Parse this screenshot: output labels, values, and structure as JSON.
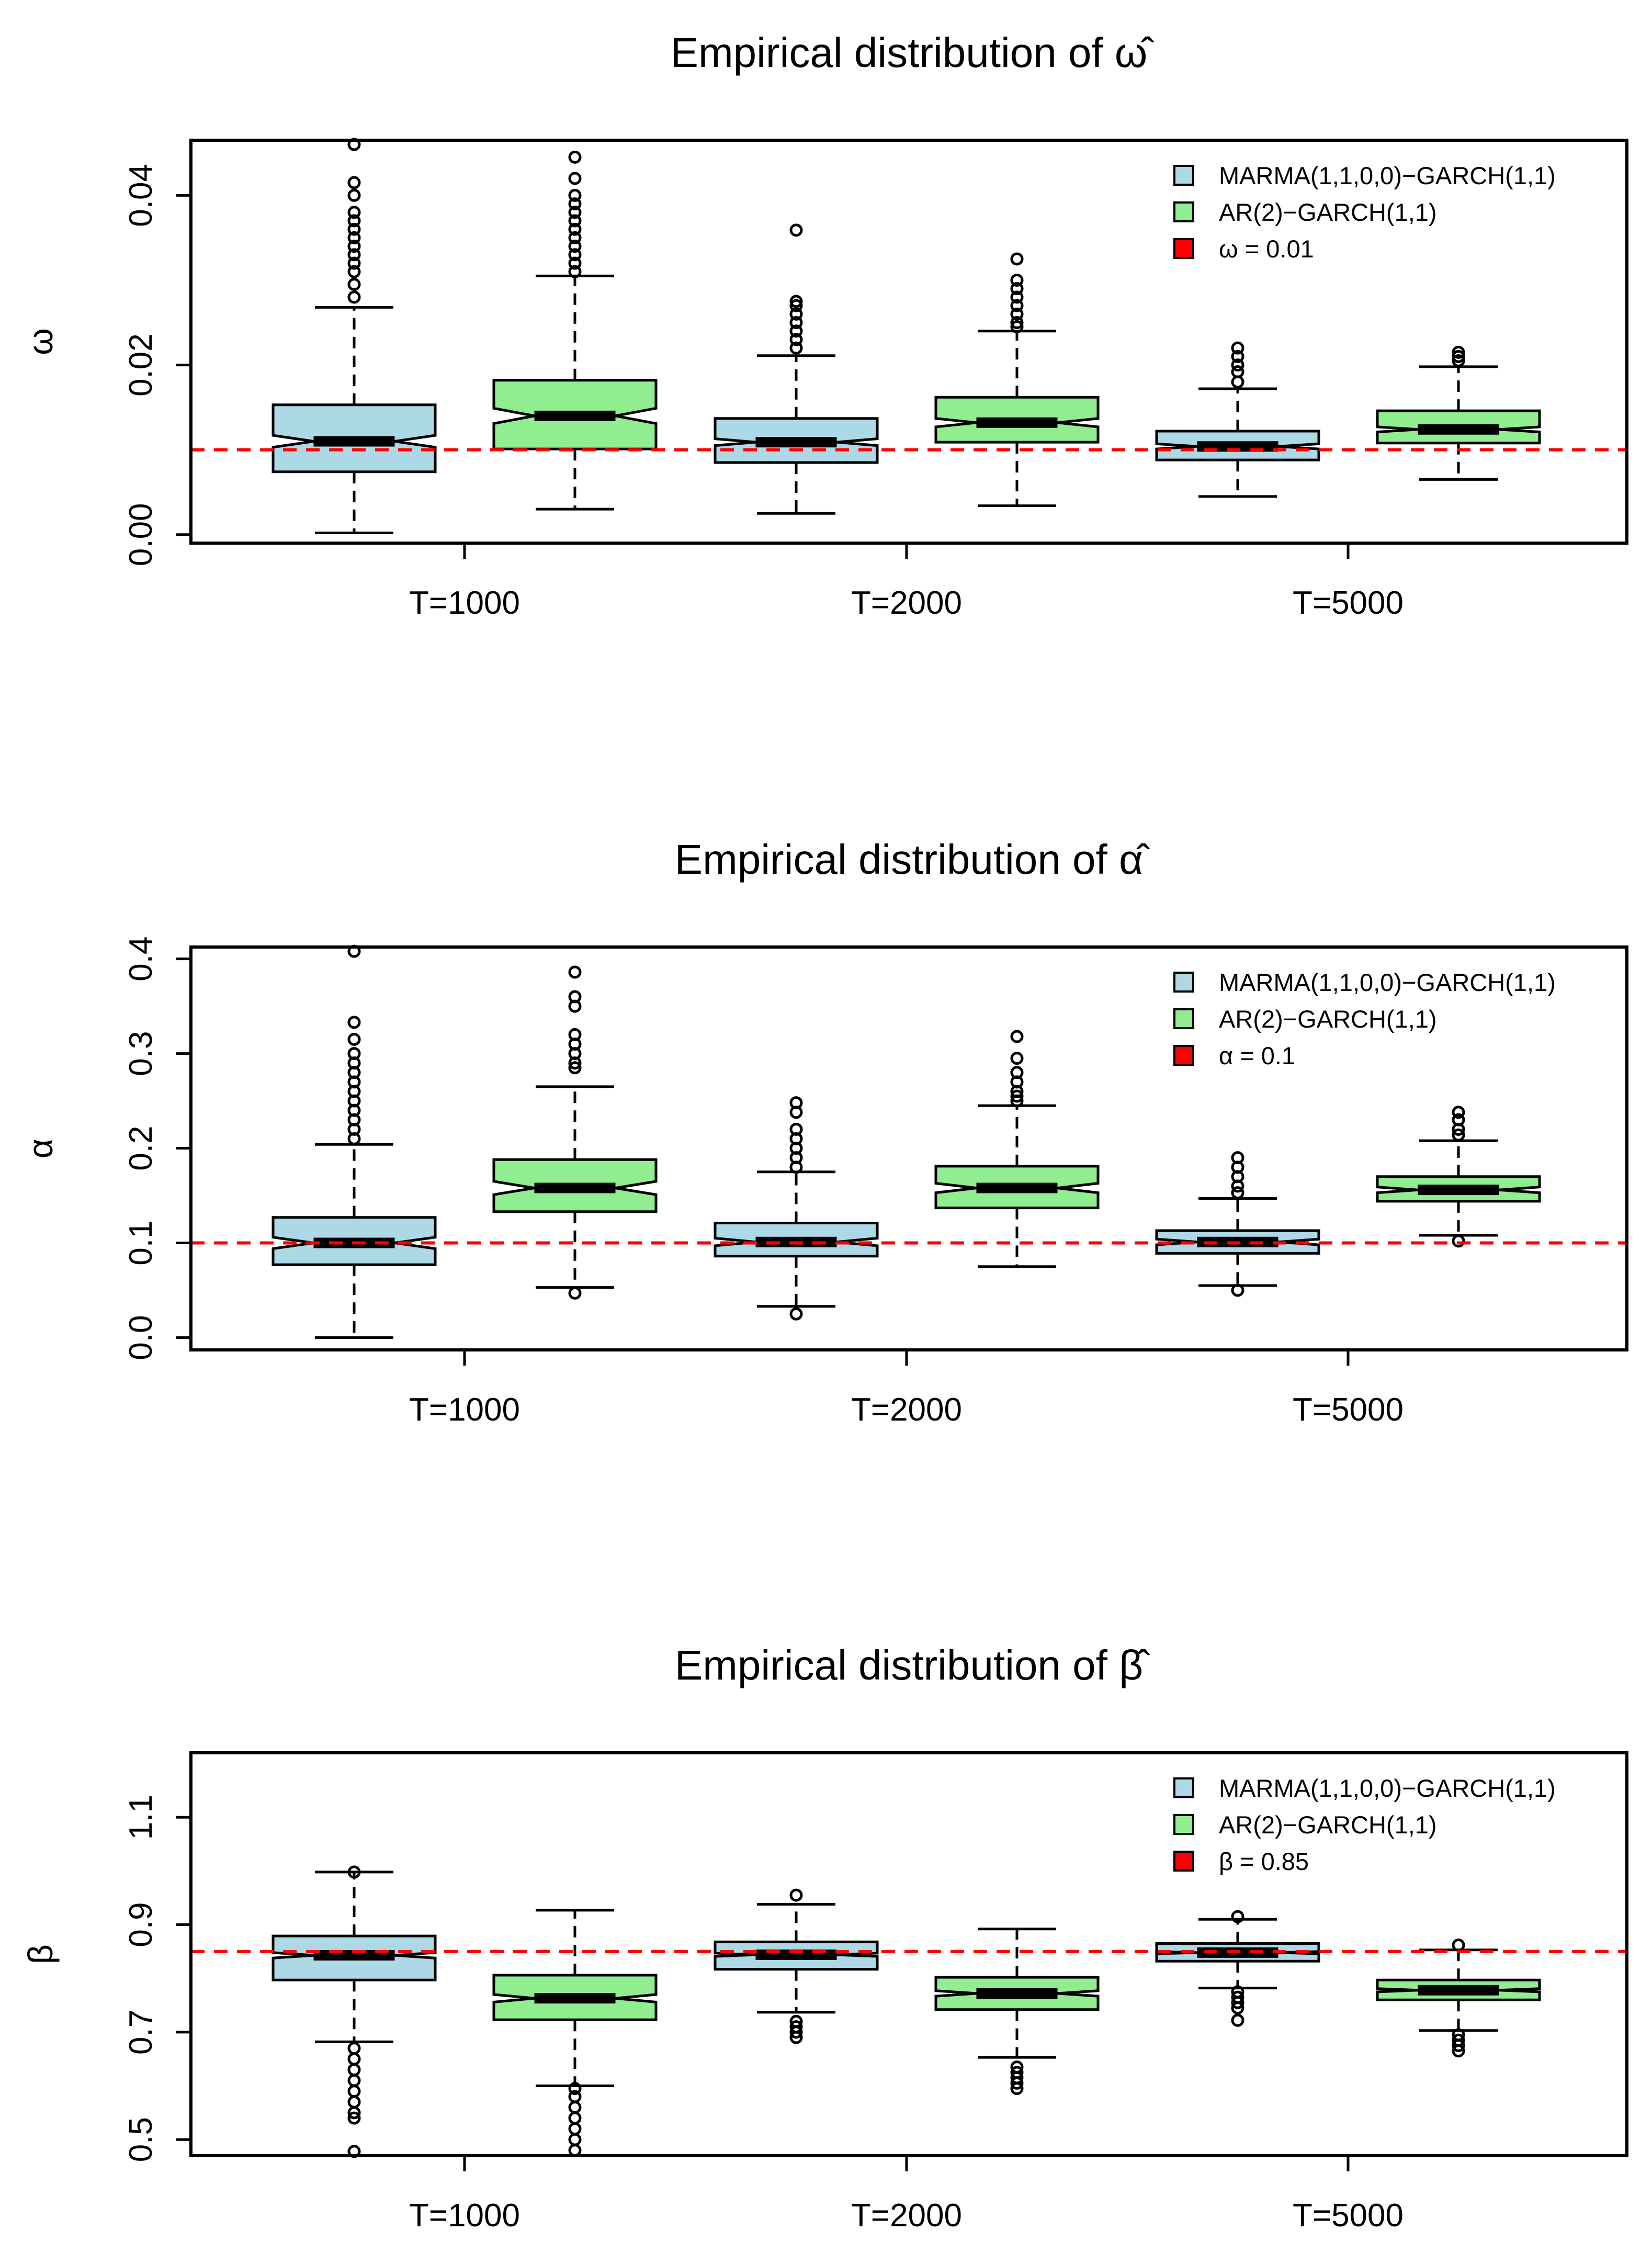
{
  "chart_data": [
    {
      "type": "box",
      "title": "Empirical distribution of ω̂",
      "ylabel": "ω",
      "ylim": [
        -0.001,
        0.0465
      ],
      "yticks": [
        0.0,
        0.02,
        0.04
      ],
      "ytick_labels": [
        "0.00",
        "0.02",
        "0.04"
      ],
      "categories": [
        "T=1000",
        "T=2000",
        "T=5000"
      ],
      "series": [
        {
          "name": "MARMA(1,1,0,0)−GARCH(1,1)",
          "color": "#add8e6",
          "boxes": [
            {
              "min": 0.0002,
              "q1": 0.0074,
              "median": 0.011,
              "q3": 0.0153,
              "max": 0.0268,
              "notch": 0.0007,
              "outliers": [
                0.028,
                0.0295,
                0.031,
                0.032,
                0.033,
                0.034,
                0.035,
                0.036,
                0.037,
                0.038,
                0.04,
                0.0415,
                0.046
              ]
            },
            {
              "min": 0.0025,
              "q1": 0.0085,
              "median": 0.0109,
              "q3": 0.0137,
              "max": 0.0211,
              "notch": 0.0004,
              "outliers": [
                0.022,
                0.023,
                0.024,
                0.025,
                0.026,
                0.027,
                0.0275,
                0.0359
              ]
            },
            {
              "min": 0.0045,
              "q1": 0.0088,
              "median": 0.0104,
              "q3": 0.0122,
              "max": 0.0172,
              "notch": 0.0003,
              "outliers": [
                0.018,
                0.0192,
                0.02,
                0.021,
                0.022
              ]
            }
          ]
        },
        {
          "name": "AR(2)−GARCH(1,1)",
          "color": "#90ee90",
          "boxes": [
            {
              "min": 0.003,
              "q1": 0.0101,
              "median": 0.014,
              "q3": 0.0182,
              "max": 0.0305,
              "notch": 0.0009,
              "outliers": [
                0.031,
                0.032,
                0.033,
                0.034,
                0.035,
                0.036,
                0.037,
                0.038,
                0.039,
                0.04,
                0.042,
                0.0445
              ]
            },
            {
              "min": 0.0034,
              "q1": 0.0109,
              "median": 0.0132,
              "q3": 0.0162,
              "max": 0.024,
              "notch": 0.0005,
              "outliers": [
                0.0245,
                0.025,
                0.026,
                0.027,
                0.028,
                0.029,
                0.03,
                0.0325
              ]
            },
            {
              "min": 0.0065,
              "q1": 0.0108,
              "median": 0.0124,
              "q3": 0.0146,
              "max": 0.0198,
              "notch": 0.0003,
              "outliers": [
                0.0205,
                0.021,
                0.0215
              ]
            }
          ]
        }
      ],
      "reference": {
        "value": 0.01,
        "color": "#ff0000",
        "label": "ω = 0.01"
      },
      "legend_position": "top-right"
    },
    {
      "type": "box",
      "title": "Empirical distribution of α̂",
      "ylabel": "α",
      "ylim": [
        -0.013,
        0.4125
      ],
      "yticks": [
        0.0,
        0.1,
        0.2,
        0.3,
        0.4
      ],
      "ytick_labels": [
        "0.0",
        "0.1",
        "0.2",
        "0.3",
        "0.4"
      ],
      "categories": [
        "T=1000",
        "T=2000",
        "T=5000"
      ],
      "series": [
        {
          "name": "MARMA(1,1,0,0)−GARCH(1,1)",
          "color": "#add8e6",
          "boxes": [
            {
              "min": 0.0,
              "q1": 0.077,
              "median": 0.1,
              "q3": 0.127,
              "max": 0.204,
              "notch": 0.006,
              "outliers": [
                0.21,
                0.22,
                0.23,
                0.24,
                0.25,
                0.26,
                0.27,
                0.28,
                0.29,
                0.3,
                0.315,
                0.333,
                0.408
              ]
            },
            {
              "min": 0.033,
              "q1": 0.086,
              "median": 0.101,
              "q3": 0.121,
              "max": 0.175,
              "notch": 0.004,
              "outliers": [
                0.025,
                0.18,
                0.19,
                0.2,
                0.21,
                0.22,
                0.238,
                0.248
              ]
            },
            {
              "min": 0.055,
              "q1": 0.089,
              "median": 0.101,
              "q3": 0.113,
              "max": 0.147,
              "notch": 0.003,
              "outliers": [
                0.05,
                0.153,
                0.16,
                0.17,
                0.18,
                0.19
              ]
            }
          ]
        },
        {
          "name": "AR(2)−GARCH(1,1)",
          "color": "#90ee90",
          "boxes": [
            {
              "min": 0.053,
              "q1": 0.133,
              "median": 0.158,
              "q3": 0.188,
              "max": 0.265,
              "notch": 0.007,
              "outliers": [
                0.047,
                0.285,
                0.29,
                0.3,
                0.31,
                0.32,
                0.35,
                0.36,
                0.386
              ]
            },
            {
              "min": 0.075,
              "q1": 0.137,
              "median": 0.158,
              "q3": 0.181,
              "max": 0.245,
              "notch": 0.005,
              "outliers": [
                0.25,
                0.255,
                0.26,
                0.27,
                0.28,
                0.295,
                0.318
              ]
            },
            {
              "min": 0.108,
              "q1": 0.144,
              "median": 0.156,
              "q3": 0.17,
              "max": 0.208,
              "notch": 0.003,
              "outliers": [
                0.102,
                0.214,
                0.22,
                0.23,
                0.238
              ]
            }
          ]
        }
      ],
      "reference": {
        "value": 0.1,
        "color": "#ff0000",
        "label": "α = 0.1"
      },
      "legend_position": "top-right"
    },
    {
      "type": "box",
      "title": "Empirical distribution of β̂",
      "ylabel": "β",
      "ylim": [
        0.47,
        1.22
      ],
      "yticks": [
        0.5,
        0.7,
        0.9,
        1.1
      ],
      "ytick_labels": [
        "0.5",
        "0.7",
        "0.9",
        "1.1"
      ],
      "categories": [
        "T=1000",
        "T=2000",
        "T=5000"
      ],
      "series": [
        {
          "name": "MARMA(1,1,0,0)−GARCH(1,1)",
          "color": "#add8e6",
          "boxes": [
            {
              "min": 0.682,
              "q1": 0.797,
              "median": 0.843,
              "q3": 0.879,
              "max": 0.998,
              "notch": 0.005,
              "outliers": [
                0.478,
                0.54,
                0.55,
                0.57,
                0.59,
                0.61,
                0.63,
                0.65,
                0.67,
                0.998
              ]
            },
            {
              "min": 0.737,
              "q1": 0.817,
              "median": 0.844,
              "q3": 0.868,
              "max": 0.938,
              "notch": 0.003,
              "outliers": [
                0.69,
                0.7,
                0.71,
                0.72,
                0.955
              ]
            },
            {
              "min": 0.782,
              "q1": 0.832,
              "median": 0.848,
              "q3": 0.865,
              "max": 0.91,
              "notch": 0.002,
              "outliers": [
                0.722,
                0.745,
                0.755,
                0.765,
                0.775,
                0.915
              ]
            }
          ]
        },
        {
          "name": "AR(2)−GARCH(1,1)",
          "color": "#90ee90",
          "boxes": [
            {
              "min": 0.6,
              "q1": 0.723,
              "median": 0.763,
              "q3": 0.806,
              "max": 0.927,
              "notch": 0.007,
              "outliers": [
                0.48,
                0.5,
                0.52,
                0.54,
                0.56,
                0.58,
                0.595
              ]
            },
            {
              "min": 0.653,
              "q1": 0.742,
              "median": 0.772,
              "q3": 0.802,
              "max": 0.892,
              "notch": 0.005,
              "outliers": [
                0.595,
                0.605,
                0.615,
                0.625,
                0.635
              ]
            },
            {
              "min": 0.703,
              "q1": 0.76,
              "median": 0.778,
              "q3": 0.797,
              "max": 0.853,
              "notch": 0.003,
              "outliers": [
                0.665,
                0.675,
                0.685,
                0.695,
                0.862
              ]
            }
          ]
        }
      ],
      "reference": {
        "value": 0.85,
        "color": "#ff0000",
        "label": "β = 0.85"
      },
      "legend_position": "top-right"
    }
  ]
}
